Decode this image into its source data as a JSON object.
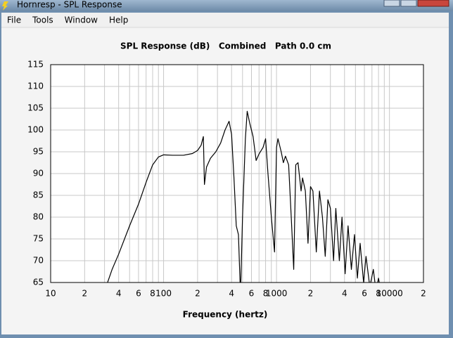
{
  "window": {
    "title": "Hornresp - SPL Response"
  },
  "menu": [
    "File",
    "Tools",
    "Window",
    "Help"
  ],
  "chart_data": {
    "type": "line",
    "title": "SPL Response (dB)   Combined   Path 0.0 cm",
    "x_label": "Frequency (hertz)",
    "x_scale": "log",
    "grid": true,
    "color": "#000000",
    "xlim": [
      10,
      20000
    ],
    "ylim": [
      65,
      115
    ],
    "xticks": [
      10,
      {
        "value": 20,
        "label": "2"
      },
      {
        "value": 30,
        "label": null
      },
      {
        "value": 40,
        "label": "4"
      },
      {
        "value": 50,
        "label": null
      },
      {
        "value": 60,
        "label": "6"
      },
      {
        "value": 70,
        "label": null
      },
      {
        "value": 80,
        "label": "8"
      },
      {
        "value": 90,
        "label": null
      },
      100,
      {
        "value": 200,
        "label": "2"
      },
      {
        "value": 300,
        "label": null
      },
      {
        "value": 400,
        "label": "4"
      },
      {
        "value": 500,
        "label": null
      },
      {
        "value": 600,
        "label": "6"
      },
      {
        "value": 700,
        "label": null
      },
      {
        "value": 800,
        "label": "8"
      },
      {
        "value": 900,
        "label": null
      },
      1000,
      {
        "value": 2000,
        "label": "2"
      },
      {
        "value": 3000,
        "label": null
      },
      {
        "value": 4000,
        "label": "4"
      },
      {
        "value": 5000,
        "label": null
      },
      {
        "value": 6000,
        "label": "6"
      },
      {
        "value": 7000,
        "label": null
      },
      {
        "value": 8000,
        "label": "8"
      },
      {
        "value": 9000,
        "label": null
      },
      10000,
      {
        "value": 20000,
        "label": "2"
      }
    ],
    "yticks": [
      65,
      70,
      75,
      80,
      85,
      90,
      95,
      100,
      105,
      110,
      115
    ],
    "x": [
      30,
      35,
      40,
      50,
      60,
      70,
      80,
      90,
      100,
      120,
      150,
      180,
      200,
      215,
      225,
      230,
      240,
      260,
      290,
      320,
      350,
      380,
      400,
      420,
      440,
      460,
      480,
      500,
      530,
      550,
      580,
      620,
      660,
      700,
      760,
      800,
      840,
      900,
      960,
      1000,
      1030,
      1100,
      1150,
      1200,
      1280,
      1350,
      1420,
      1480,
      1550,
      1650,
      1700,
      1800,
      1900,
      2000,
      2100,
      2250,
      2400,
      2550,
      2700,
      2850,
      3000,
      3200,
      3350,
      3600,
      3800,
      4050,
      4300,
      4600,
      4900,
      5200,
      5500,
      5900,
      6200,
      6700,
      7200,
      7600,
      8000,
      8500
    ],
    "values": [
      63,
      68,
      71.5,
      78,
      83,
      88,
      92,
      93.8,
      94.3,
      94.2,
      94.2,
      94.6,
      95.3,
      96.5,
      98.5,
      87.5,
      91.5,
      93.5,
      95,
      97,
      100,
      102,
      99,
      89,
      78,
      76,
      62,
      80,
      98,
      104.3,
      101.5,
      98.5,
      93,
      94.5,
      96,
      98,
      90,
      80,
      72,
      96,
      98,
      95,
      92.5,
      94,
      92,
      80,
      68,
      92,
      92.5,
      86,
      89,
      86,
      74,
      87,
      86,
      72,
      86,
      80,
      71,
      84,
      82,
      70,
      82,
      70,
      80,
      67,
      78,
      68,
      76,
      66,
      74,
      65,
      71,
      64,
      68,
      63,
      66,
      62
    ]
  }
}
